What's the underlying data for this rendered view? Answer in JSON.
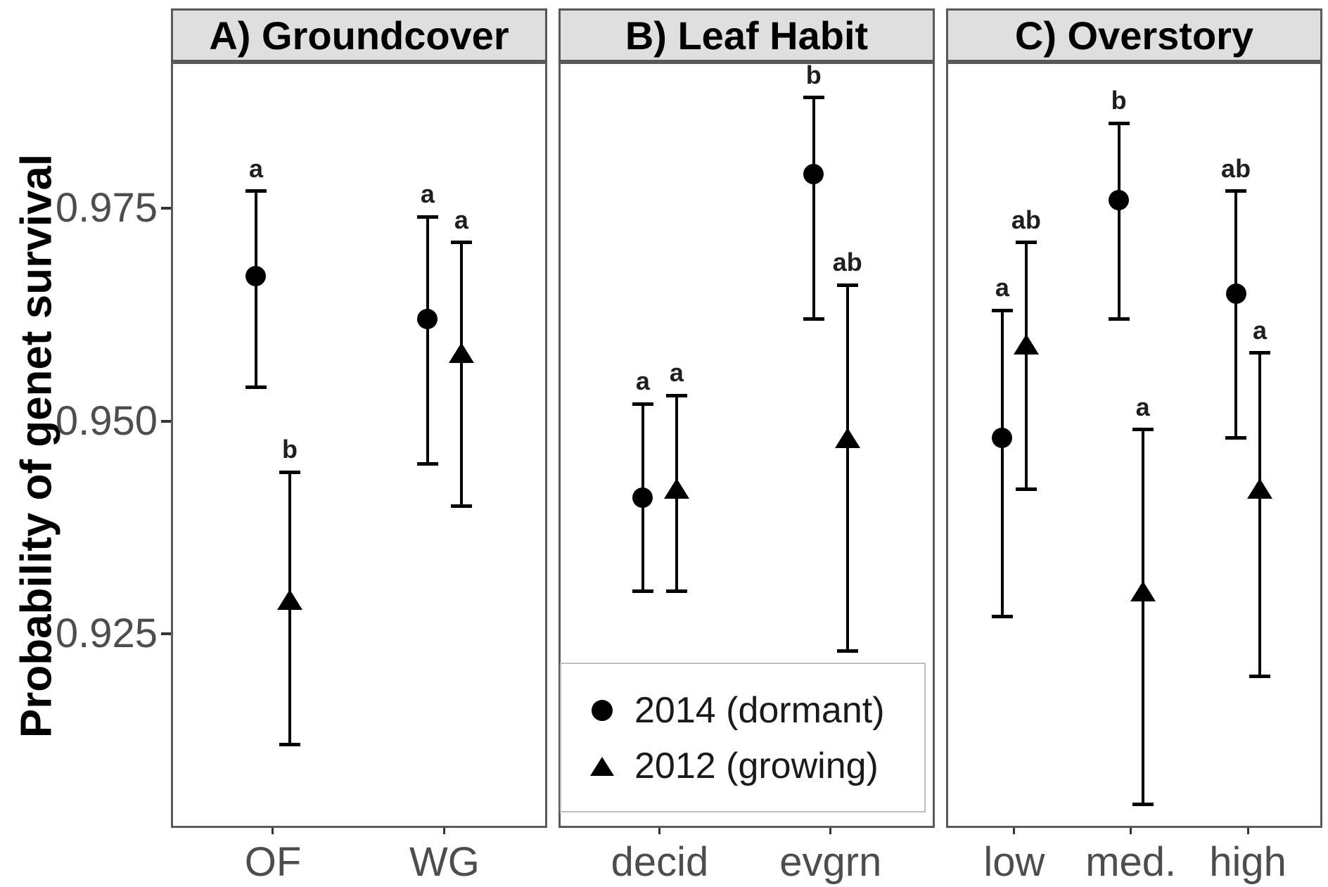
{
  "y_axis": {
    "title": "Probability of genet survival",
    "tick_labels": [
      "0.975",
      "0.950",
      "0.925"
    ],
    "tick_values": [
      0.975,
      0.95,
      0.925
    ]
  },
  "legend": {
    "items": [
      {
        "marker": "circle-icon",
        "label": "2014 (dormant)"
      },
      {
        "marker": "triangle-icon",
        "label": "2012 (growing)"
      }
    ]
  },
  "colors": {
    "data_black": "#000000",
    "axis_label_gray": "#4d4d4d",
    "strip_background": "#dfdfdf",
    "panel_border_gray": "#5a5a5a",
    "legend_border_gray": "#bdbdbd"
  },
  "chart_data": {
    "type": "scatter",
    "subtype": "dodged point estimates with 95% CI error bars, 3 facets",
    "ylabel": "Probability of genet survival",
    "ylim": [
      0.9022,
      0.9922
    ],
    "yticks": [
      0.975,
      0.95,
      0.925
    ],
    "grid": "off",
    "legend_position": "bottom of panel B",
    "series": [
      "2014 (dormant)",
      "2012 (growing)"
    ],
    "panels": [
      {
        "label": "A) Groundcover",
        "categories": [
          "OF",
          "WG"
        ],
        "points": [
          {
            "category": "OF",
            "series": "2014 (dormant)",
            "marker": "circle",
            "estimate": 0.967,
            "ci_low": 0.954,
            "ci_high": 0.977,
            "sig": "a"
          },
          {
            "category": "OF",
            "series": "2012 (growing)",
            "marker": "triangle",
            "estimate": 0.929,
            "ci_low": 0.912,
            "ci_high": 0.944,
            "sig": "b"
          },
          {
            "category": "WG",
            "series": "2014 (dormant)",
            "marker": "circle",
            "estimate": 0.962,
            "ci_low": 0.945,
            "ci_high": 0.974,
            "sig": "a"
          },
          {
            "category": "WG",
            "series": "2012 (growing)",
            "marker": "triangle",
            "estimate": 0.958,
            "ci_low": 0.94,
            "ci_high": 0.971,
            "sig": "a"
          }
        ]
      },
      {
        "label": "B) Leaf Habit",
        "categories": [
          "decid",
          "evgrn"
        ],
        "points": [
          {
            "category": "decid",
            "series": "2014 (dormant)",
            "marker": "circle",
            "estimate": 0.941,
            "ci_low": 0.93,
            "ci_high": 0.952,
            "sig": "a"
          },
          {
            "category": "decid",
            "series": "2012 (growing)",
            "marker": "triangle",
            "estimate": 0.942,
            "ci_low": 0.93,
            "ci_high": 0.953,
            "sig": "a"
          },
          {
            "category": "evgrn",
            "series": "2014 (dormant)",
            "marker": "circle",
            "estimate": 0.979,
            "ci_low": 0.962,
            "ci_high": 0.988,
            "sig": "b"
          },
          {
            "category": "evgrn",
            "series": "2012 (growing)",
            "marker": "triangle",
            "estimate": 0.948,
            "ci_low": 0.923,
            "ci_high": 0.966,
            "sig": "ab"
          }
        ]
      },
      {
        "label": "C) Overstory",
        "categories": [
          "low",
          "med.",
          "high"
        ],
        "points": [
          {
            "category": "low",
            "series": "2014 (dormant)",
            "marker": "circle",
            "estimate": 0.948,
            "ci_low": 0.927,
            "ci_high": 0.963,
            "sig": "a"
          },
          {
            "category": "low",
            "series": "2012 (growing)",
            "marker": "triangle",
            "estimate": 0.959,
            "ci_low": 0.942,
            "ci_high": 0.971,
            "sig": "ab"
          },
          {
            "category": "med.",
            "series": "2014 (dormant)",
            "marker": "circle",
            "estimate": 0.976,
            "ci_low": 0.962,
            "ci_high": 0.985,
            "sig": "b"
          },
          {
            "category": "med.",
            "series": "2012 (growing)",
            "marker": "triangle",
            "estimate": 0.93,
            "ci_low": 0.905,
            "ci_high": 0.949,
            "sig": "a"
          },
          {
            "category": "high",
            "series": "2014 (dormant)",
            "marker": "circle",
            "estimate": 0.965,
            "ci_low": 0.948,
            "ci_high": 0.977,
            "sig": "ab"
          },
          {
            "category": "high",
            "series": "2012 (growing)",
            "marker": "triangle",
            "estimate": 0.942,
            "ci_low": 0.92,
            "ci_high": 0.958,
            "sig": "a"
          }
        ]
      }
    ]
  }
}
